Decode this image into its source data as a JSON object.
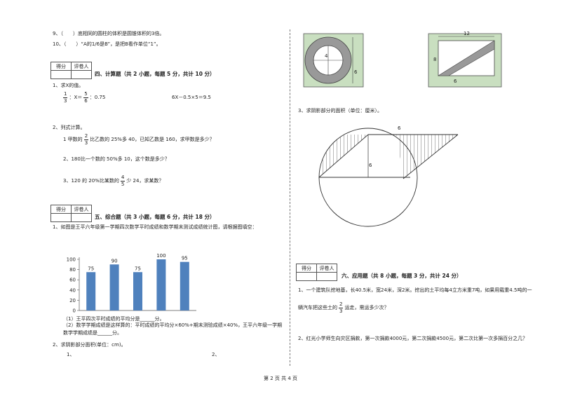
{
  "left": {
    "q9": "9、（　　）底相同的圆柱的体积是圆锥体积的3倍。",
    "q10": "10、（　　）“A的1/6是B”，是把B看作单位“1”。",
    "section4": {
      "score_box": [
        "得分",
        "评卷人"
      ],
      "title": "四、计算题（共 2 小题，每题 5 分，共计 10 分）",
      "q1": "1、求X的值。",
      "eq1": {
        "a_num": "1",
        "a_den": "3",
        "mid": "：X＝",
        "b_num": "5",
        "b_den": "6",
        "end": "：0.75"
      },
      "eq2": "6X－0.5×5＝9.5",
      "q2": "2、列式计算。",
      "item1": {
        "pre": "1 甲数的",
        "num": "2",
        "den": "3",
        "post": "比乙数的 25%多 40，已知乙数是 160，求甲数是多少？"
      },
      "item2": "2、180比一个数的 50%多 10，这个数是多少？",
      "item3": {
        "pre": "3、120 的 20%比某数的",
        "num": "4",
        "den": "5",
        "post": "少 24，求某数？"
      }
    },
    "section5": {
      "score_box": [
        "得分",
        "评卷人"
      ],
      "title": "五、综合题（共 3 小题，每题 6 分，共计 18 分）",
      "q1": "1、如图是王平六年级第一学期四次数学平时成绩和数学期末测试成绩统计图，请根据图填空：",
      "chart": {
        "type": "bar",
        "values": [
          75,
          90,
          75,
          100,
          95
        ],
        "color": "#4f81bd",
        "ylim": [
          0,
          100
        ],
        "yticks": [
          0,
          20,
          40,
          60,
          80,
          100
        ]
      },
      "sub1": "（1）王平四次平时成绩的平均分是______分。",
      "sub2": "（2）数学学期成绩是这样算的：平时成绩的平均分×60%+期末测验成绩×40%，王平六年级一学期数学学期成绩是______分。",
      "q2": "2、求阴影部分面积(单位：cm)。",
      "fig1": "1、",
      "fig2": "2、"
    }
  },
  "right": {
    "fig_circle_labels": [
      "4",
      "6"
    ],
    "fig_rect_labels": [
      "12",
      "8",
      "6"
    ],
    "q3": "3、求阴影部分的面积（单位：厘米）。",
    "fig3_labels": [
      "6",
      "6"
    ],
    "section6": {
      "score_box": [
        "得分",
        "评卷人"
      ],
      "title": "六、应用题（共 8 小题，每题 3 分，共计 24 分）",
      "app1": {
        "pre": "1、一个建筑队挖地基，长40.5米，宽24米，深2米。挖出的土平均每4立方米重7吨，如果用载重4.5吨的一辆汽车把这些土的",
        "num": "2",
        "den": "3",
        "post": "运走，需运多少次？"
      },
      "app2": "2、红光小学师生向灾区捐款，第一次捐款4000元，第二次捐款4500元，第二次比第一次多捐百分之几？"
    }
  },
  "footer": "第 2 页 共 4 页"
}
